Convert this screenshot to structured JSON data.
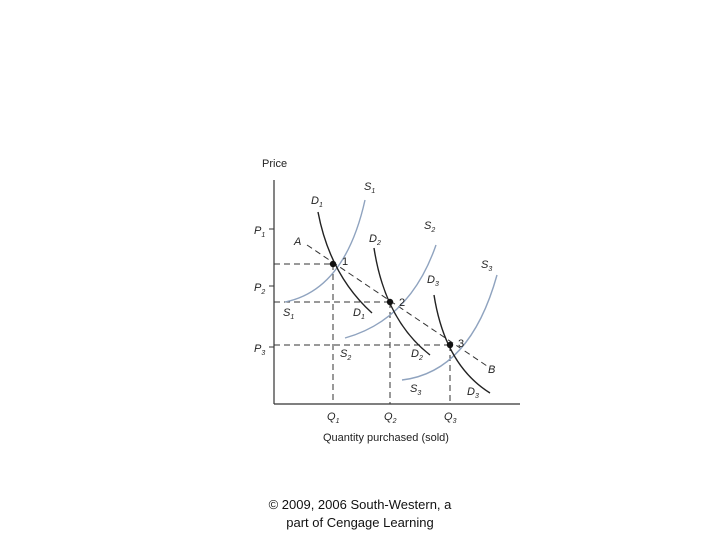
{
  "diagram": {
    "y_axis_label": "Price",
    "x_axis_label": "Quantity purchased (sold)",
    "price_ticks": [
      {
        "base": "P",
        "sub": "1"
      },
      {
        "base": "P",
        "sub": "2"
      },
      {
        "base": "P",
        "sub": "3"
      }
    ],
    "quantity_ticks": [
      {
        "base": "Q",
        "sub": "1"
      },
      {
        "base": "Q",
        "sub": "2"
      },
      {
        "base": "Q",
        "sub": "3"
      }
    ],
    "curve_labels": {
      "s1_top": {
        "base": "S",
        "sub": "1"
      },
      "s1_bottom": {
        "base": "S",
        "sub": "1"
      },
      "s2_top": {
        "base": "S",
        "sub": "2"
      },
      "s2_bottom": {
        "base": "S",
        "sub": "2"
      },
      "s3_top": {
        "base": "S",
        "sub": "3"
      },
      "s3_bottom": {
        "base": "S",
        "sub": "3"
      },
      "d1_top": {
        "base": "D",
        "sub": "1"
      },
      "d1_bottom": {
        "base": "D",
        "sub": "1"
      },
      "d2_top": {
        "base": "D",
        "sub": "2"
      },
      "d2_bottom": {
        "base": "D",
        "sub": "2"
      },
      "d3_top": {
        "base": "D",
        "sub": "3"
      },
      "d3_bottom": {
        "base": "D",
        "sub": "3"
      }
    },
    "trend_line_start": "A",
    "trend_line_end": "B",
    "points": [
      "1",
      "2",
      "3"
    ],
    "colors": {
      "supply": "#8fa3bf",
      "demand": "#222222",
      "guide": "#333333"
    }
  },
  "credit": {
    "line1": "© 2009, 2006 South-Western, a",
    "line2": "part of Cengage Learning"
  }
}
